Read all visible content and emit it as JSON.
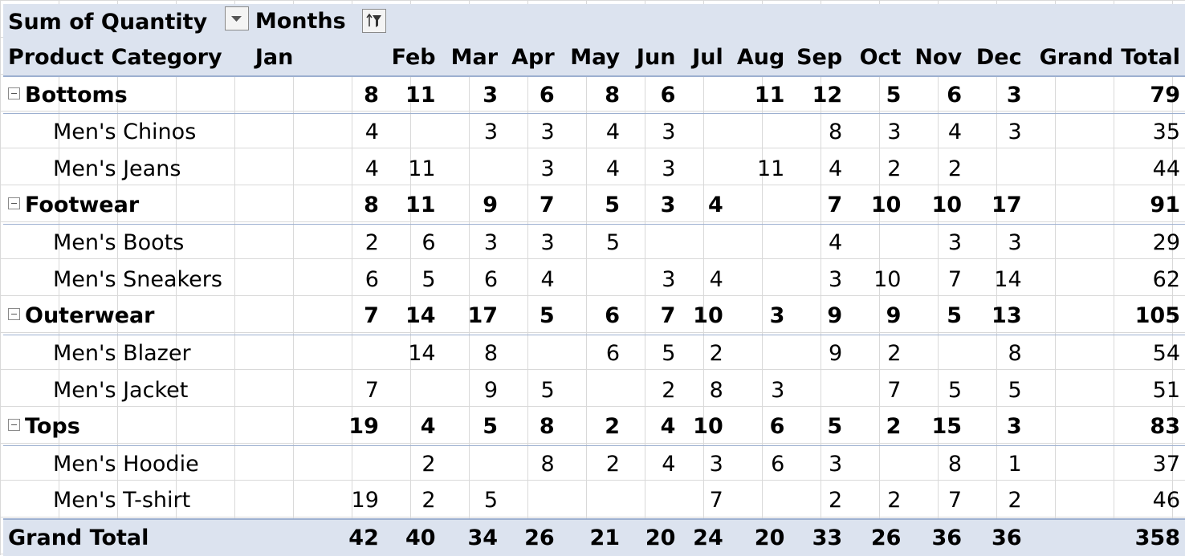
{
  "pivot": {
    "value_field": "Sum of Quantity",
    "column_field": "Months",
    "row_field": "Product Category",
    "grand_total_label": "Grand Total",
    "months": [
      "Jan",
      "Feb",
      "Mar",
      "Apr",
      "May",
      "Jun",
      "Jul",
      "Aug",
      "Sep",
      "Oct",
      "Nov",
      "Dec"
    ],
    "rows": [
      {
        "label": "Bottoms",
        "level": 0,
        "values": [
          "8",
          "11",
          "3",
          "6",
          "8",
          "6",
          "",
          "11",
          "12",
          "5",
          "6",
          "3"
        ],
        "total": "79"
      },
      {
        "label": "Men's Chinos",
        "level": 1,
        "values": [
          "4",
          "",
          "3",
          "3",
          "4",
          "3",
          "",
          "",
          "8",
          "3",
          "4",
          "3"
        ],
        "total": "35"
      },
      {
        "label": "Men's Jeans",
        "level": 1,
        "values": [
          "4",
          "11",
          "",
          "3",
          "4",
          "3",
          "",
          "11",
          "4",
          "2",
          "2",
          ""
        ],
        "total": "44"
      },
      {
        "label": "Footwear",
        "level": 0,
        "values": [
          "8",
          "11",
          "9",
          "7",
          "5",
          "3",
          "4",
          "",
          "7",
          "10",
          "10",
          "17"
        ],
        "total": "91"
      },
      {
        "label": "Men's Boots",
        "level": 1,
        "values": [
          "2",
          "6",
          "3",
          "3",
          "5",
          "",
          "",
          "",
          "4",
          "",
          "3",
          "3"
        ],
        "total": "29"
      },
      {
        "label": "Men's Sneakers",
        "level": 1,
        "values": [
          "6",
          "5",
          "6",
          "4",
          "",
          "3",
          "4",
          "",
          "3",
          "10",
          "7",
          "14"
        ],
        "total": "62"
      },
      {
        "label": "Outerwear",
        "level": 0,
        "values": [
          "7",
          "14",
          "17",
          "5",
          "6",
          "7",
          "10",
          "3",
          "9",
          "9",
          "5",
          "13"
        ],
        "total": "105"
      },
      {
        "label": "Men's Blazer",
        "level": 1,
        "values": [
          "",
          "14",
          "8",
          "",
          "6",
          "5",
          "2",
          "",
          "9",
          "2",
          "",
          "8"
        ],
        "total": "54"
      },
      {
        "label": "Men's Jacket",
        "level": 1,
        "values": [
          "7",
          "",
          "9",
          "5",
          "",
          "2",
          "8",
          "3",
          "",
          "7",
          "5",
          "5"
        ],
        "total": "51"
      },
      {
        "label": "Tops",
        "level": 0,
        "values": [
          "19",
          "4",
          "5",
          "8",
          "2",
          "4",
          "10",
          "6",
          "5",
          "2",
          "15",
          "3"
        ],
        "total": "83"
      },
      {
        "label": "Men's Hoodie",
        "level": 1,
        "values": [
          "",
          "2",
          "",
          "8",
          "2",
          "4",
          "3",
          "6",
          "3",
          "",
          "8",
          "1"
        ],
        "total": "37"
      },
      {
        "label": "Men's T-shirt",
        "level": 1,
        "values": [
          "19",
          "2",
          "5",
          "",
          "",
          "",
          "7",
          "",
          "2",
          "2",
          "7",
          "2"
        ],
        "total": "46"
      }
    ],
    "grand_total_row": {
      "values": [
        "42",
        "40",
        "34",
        "26",
        "21",
        "20",
        "24",
        "20",
        "33",
        "26",
        "36",
        "36"
      ],
      "total": "358"
    }
  },
  "icons": {
    "sort_filter": "sort-filter-icon",
    "dropdown": "dropdown-arrow-icon",
    "collapse": "collapse-minus-icon"
  },
  "colors": {
    "header_fill": "#dce3ef",
    "border_accent": "#9db0d0",
    "gridline": "#d9d9d9"
  }
}
